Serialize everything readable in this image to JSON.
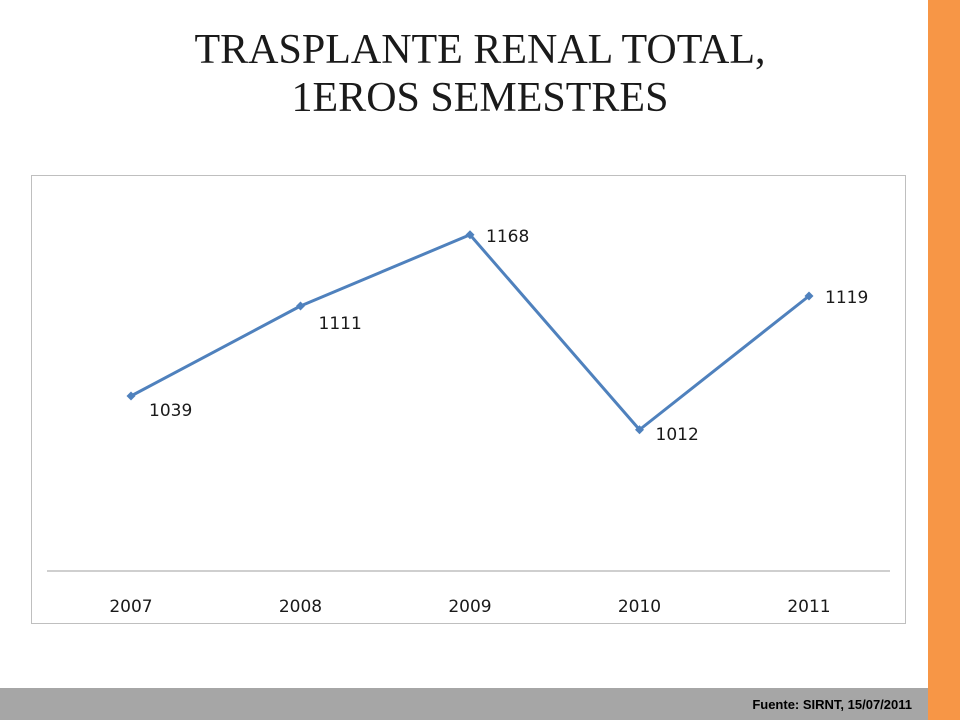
{
  "slide": {
    "title_line1": "TRASPLANTE RENAL TOTAL,",
    "title_line2": "1EROS SEMESTRES",
    "source": "Fuente: SIRNT, 15/07/2011"
  },
  "colors": {
    "accent_bar": "#f79646",
    "line": "#4f81bd",
    "footer": "#a6a6a6"
  },
  "chart_data": {
    "type": "line",
    "categories": [
      "2007",
      "2008",
      "2009",
      "2010",
      "2011"
    ],
    "series": [
      {
        "values": [
          1039,
          1111,
          1168,
          1012,
          1119
        ]
      }
    ],
    "title": "",
    "xlabel": "",
    "ylabel": "",
    "data_labels": true,
    "marker": "diamond",
    "grid": false,
    "legend": "none"
  }
}
